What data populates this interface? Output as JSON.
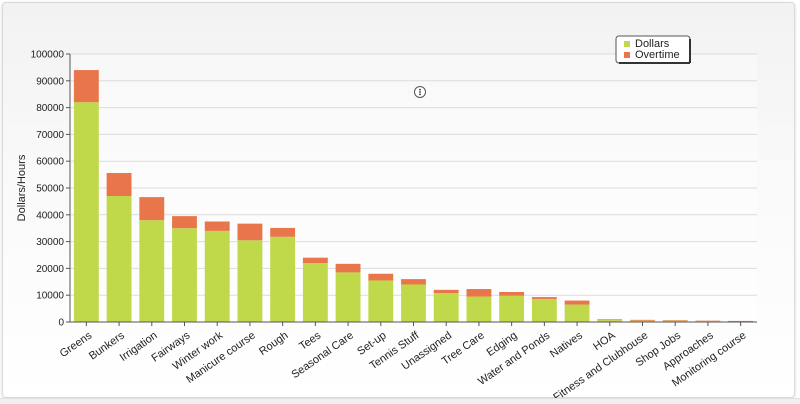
{
  "chart_data": {
    "type": "bar",
    "stacked": true,
    "ylabel": "Dollars/Hours",
    "ylim": [
      0,
      100000
    ],
    "yticks": [
      0,
      10000,
      20000,
      30000,
      40000,
      50000,
      60000,
      70000,
      80000,
      90000,
      100000
    ],
    "grid": true,
    "legend_position": "top-right",
    "categories": [
      "Greens",
      "Bunkers",
      "Irrigation",
      "Fairways",
      "Winter work",
      "Manicure course",
      "Rough",
      "Tees",
      "Seasonal Care",
      "Set-up",
      "Tennis Stuff",
      "Unassigned",
      "Tree Care",
      "Edging",
      "Water and Ponds",
      "Natives",
      "HOA",
      "Fitness and Clubhouse",
      "Shop Jobs",
      "Approaches",
      "Monitoring course"
    ],
    "series": [
      {
        "name": "Dollars",
        "color": "#bfd94a",
        "values": [
          82000,
          47000,
          38000,
          35000,
          34000,
          30500,
          31800,
          22000,
          18500,
          15500,
          14000,
          10800,
          9500,
          9800,
          8600,
          6500,
          700,
          500,
          500,
          300,
          200
        ]
      },
      {
        "name": "Overtime",
        "color": "#e8764a",
        "values": [
          12000,
          8600,
          8600,
          4500,
          3500,
          6200,
          3300,
          2000,
          3200,
          2500,
          2000,
          1200,
          2800,
          1400,
          700,
          1500,
          300,
          300,
          200,
          200,
          200
        ]
      }
    ]
  },
  "toolbar": {
    "menu_icon": "vertical-ellipsis-icon"
  }
}
